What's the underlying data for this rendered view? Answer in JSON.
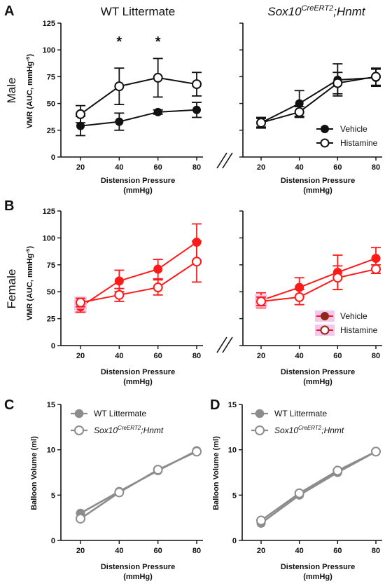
{
  "colors": {
    "black": "#111111",
    "red": "#ff1a1a",
    "gray": "#8c8c8c",
    "shadow": "#f3c8ee"
  },
  "column_titles": {
    "left": "WT Littermate",
    "right_base": "Sox10",
    "right_sup": "CreERT2",
    "right_tail": ";Hnmt"
  },
  "row_labels": {
    "male": "Male",
    "female": "Female"
  },
  "panel_letters": {
    "A": "A",
    "B": "B",
    "C": "C",
    "D": "D"
  },
  "significance_marker": "*",
  "xlabel_line1": "Distension Pressure",
  "xlabel_line2": "(mmHg)",
  "vmr_ylabel_main": "VMR (AUC, mmHg",
  "vmr_ylabel_sup": "-s",
  "vmr_ylabel_close": ")",
  "balloon_ylabel": "Balloon Volume (ml)",
  "legend_ab": [
    "Vehicle",
    "Histamine"
  ],
  "legend_cd": {
    "wt": "WT Littermate",
    "ko_base": "Sox10",
    "ko_sup": "CreERT2",
    "ko_tail": ";Hnmt"
  },
  "chart_data": [
    {
      "panel": "A-left",
      "type": "line",
      "x": [
        20,
        40,
        60,
        80
      ],
      "xticks": [
        "20",
        "40",
        "60",
        "80"
      ],
      "ylim": [
        0,
        125
      ],
      "yticks": [
        "0",
        "25",
        "50",
        "75",
        "100",
        "125"
      ],
      "series": [
        {
          "name": "Vehicle",
          "values": [
            29,
            33,
            42,
            44
          ],
          "err": [
            9,
            8,
            2,
            7
          ]
        },
        {
          "name": "Histamine",
          "values": [
            40,
            66,
            74,
            68
          ],
          "err": [
            8,
            17,
            18,
            11
          ]
        }
      ],
      "significant_x": [
        40,
        60
      ]
    },
    {
      "panel": "A-right",
      "type": "line",
      "x": [
        20,
        40,
        60,
        80
      ],
      "xticks": [
        "20",
        "40",
        "60",
        "80"
      ],
      "ylim": [
        0,
        125
      ],
      "series": [
        {
          "name": "Vehicle",
          "values": [
            32,
            50,
            72,
            74
          ],
          "err": [
            5,
            12,
            15,
            8
          ]
        },
        {
          "name": "Histamine",
          "values": [
            32,
            42,
            69,
            75
          ],
          "err": [
            4,
            5,
            10,
            8
          ]
        }
      ]
    },
    {
      "panel": "B-left",
      "type": "line",
      "x": [
        20,
        40,
        60,
        80
      ],
      "xticks": [
        "20",
        "40",
        "60",
        "80"
      ],
      "ylim": [
        0,
        125
      ],
      "yticks": [
        "0",
        "25",
        "50",
        "75",
        "100",
        "125"
      ],
      "series": [
        {
          "name": "Vehicle",
          "values": [
            36,
            60,
            71,
            96
          ],
          "err": [
            5,
            10,
            9,
            17
          ]
        },
        {
          "name": "Histamine",
          "values": [
            40,
            47,
            54,
            78
          ],
          "err": [
            4,
            6,
            7,
            19
          ]
        }
      ]
    },
    {
      "panel": "B-right",
      "type": "line",
      "x": [
        20,
        40,
        60,
        80
      ],
      "xticks": [
        "20",
        "40",
        "60",
        "80"
      ],
      "ylim": [
        0,
        125
      ],
      "series": [
        {
          "name": "Vehicle",
          "values": [
            42,
            54,
            68,
            81
          ],
          "err": [
            7,
            9,
            16,
            10
          ]
        },
        {
          "name": "Histamine",
          "values": [
            41,
            45,
            63,
            71
          ],
          "err": [
            4,
            7,
            11,
            4
          ]
        }
      ]
    },
    {
      "panel": "C",
      "type": "line",
      "x": [
        20,
        40,
        60,
        80
      ],
      "xticks": [
        "20",
        "40",
        "60",
        "80"
      ],
      "ylim": [
        0,
        15
      ],
      "yticks": [
        "0",
        "5",
        "10",
        "15"
      ],
      "series": [
        {
          "name": "WT Littermate",
          "values": [
            3.0,
            5.4,
            7.7,
            9.9
          ]
        },
        {
          "name": "Sox10CreERT2;Hnmt",
          "values": [
            2.4,
            5.3,
            7.8,
            9.8
          ]
        }
      ]
    },
    {
      "panel": "D",
      "type": "line",
      "x": [
        20,
        40,
        60,
        80
      ],
      "xticks": [
        "20",
        "40",
        "60",
        "80"
      ],
      "ylim": [
        0,
        15
      ],
      "yticks": [
        "0",
        "5",
        "10",
        "15"
      ],
      "series": [
        {
          "name": "WT Littermate",
          "values": [
            1.9,
            5.0,
            7.5,
            9.8
          ]
        },
        {
          "name": "Sox10CreERT2;Hnmt",
          "values": [
            2.2,
            5.2,
            7.7,
            9.8
          ]
        }
      ]
    }
  ]
}
